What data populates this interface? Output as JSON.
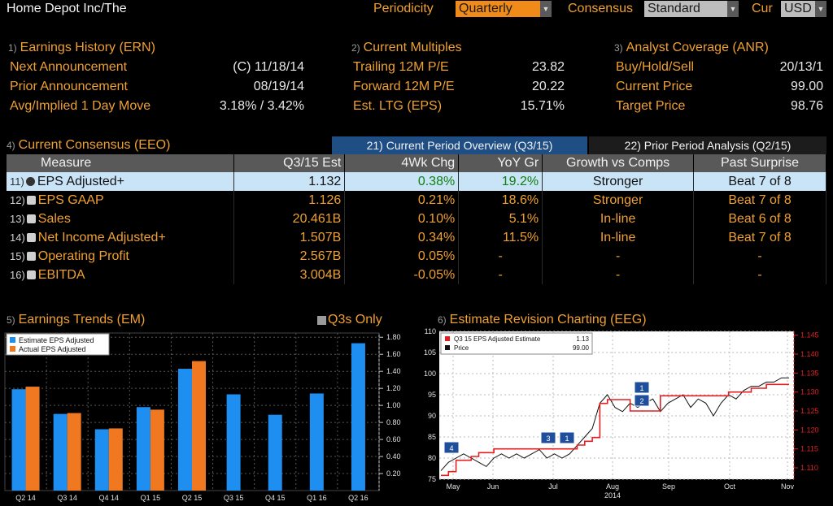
{
  "header": {
    "title": "Home Depot Inc/The",
    "periodicity_label": "Periodicity",
    "periodicity_value": "Quarterly",
    "consensus_label": "Consensus",
    "consensus_value": "Standard",
    "cur_label": "Cur",
    "cur_value": "USD"
  },
  "earnings_history": {
    "num": "1)",
    "title": "Earnings History (ERN)",
    "rows": [
      {
        "label": "Next Announcement",
        "value": "(C)  11/18/14"
      },
      {
        "label": "Prior Announcement",
        "value": "08/19/14"
      },
      {
        "label": "Avg/Implied 1 Day Move",
        "value": "3.18% / 3.42%"
      }
    ]
  },
  "current_multiples": {
    "num": "2)",
    "title": "Current Multiples",
    "rows": [
      {
        "label": "Trailing 12M P/E",
        "value": "23.82"
      },
      {
        "label": "Forward 12M P/E",
        "value": "20.22"
      },
      {
        "label": "Est. LTG (EPS)",
        "value": "15.71%"
      }
    ]
  },
  "analyst_coverage": {
    "num": "3)",
    "title": "Analyst Coverage (ANR)",
    "rows": [
      {
        "label": "Buy/Hold/Sell",
        "value": "20/13/1"
      },
      {
        "label": "Current Price",
        "value": "99.00"
      },
      {
        "label": "Target Price",
        "value": "98.76"
      }
    ]
  },
  "consensus": {
    "num": "4)",
    "title": "Current Consensus (EEO)",
    "tab_current": "21) Current Period Overview (Q3/15)",
    "tab_prior": "22) Prior Period Analysis (Q2/15)",
    "columns": [
      "Measure",
      "Q3/15 Est",
      "4Wk Chg",
      "YoY Gr",
      "Growth vs Comps",
      "Past Surprise"
    ],
    "rows": [
      {
        "idx": "11)",
        "measure": "EPS Adjusted+",
        "est": "1.132",
        "chg": "0.38%",
        "yoy": "19.2%",
        "growth": "Stronger",
        "surprise": "Beat 7 of 8"
      },
      {
        "idx": "12)",
        "measure": "EPS GAAP",
        "est": "1.126",
        "chg": "0.21%",
        "yoy": "18.6%",
        "growth": "Stronger",
        "surprise": "Beat 7 of 8"
      },
      {
        "idx": "13)",
        "measure": "Sales",
        "est": "20.461B",
        "chg": "0.10%",
        "yoy": "5.1%",
        "growth": "In-line",
        "surprise": "Beat 6 of 8"
      },
      {
        "idx": "14)",
        "measure": "Net Income Adjusted+",
        "est": "1.507B",
        "chg": "0.34%",
        "yoy": "11.5%",
        "growth": "In-line",
        "surprise": "Beat 7 of 8"
      },
      {
        "idx": "15)",
        "measure": "Operating Profit",
        "est": "2.567B",
        "chg": "0.05%",
        "yoy": "-",
        "growth": "-",
        "surprise": "-"
      },
      {
        "idx": "16)",
        "measure": "EBITDA",
        "est": "3.004B",
        "chg": "-0.05%",
        "yoy": "-",
        "growth": "-",
        "surprise": "-"
      }
    ]
  },
  "earnings_trends": {
    "num": "5)",
    "title": "Earnings Trends (EM)",
    "toggle_label": "Q3s Only"
  },
  "estimate_revision": {
    "num": "6)",
    "title": "Estimate Revision Charting (EEG)"
  },
  "colors": {
    "estimate": "#1e8ff0",
    "actual": "#f07820",
    "price": "#e0e0e0",
    "revision": "#e02020",
    "accent": "#f0a030"
  },
  "chart_data": [
    {
      "type": "bar",
      "title": "Earnings Trends (EM)",
      "categories": [
        "Q2 14",
        "Q3 14",
        "Q4 14",
        "Q1 15",
        "Q2 15",
        "Q3 15",
        "Q4 15",
        "Q1 16",
        "Q2 16"
      ],
      "series": [
        {
          "name": "Estimate EPS Adjusted",
          "values": [
            1.19,
            0.9,
            0.72,
            0.98,
            1.43,
            1.13,
            0.89,
            1.14,
            1.73
          ]
        },
        {
          "name": "Actual EPS Adjusted",
          "values": [
            1.22,
            0.91,
            0.73,
            0.95,
            1.52,
            null,
            null,
            null,
            null
          ]
        }
      ],
      "yticks": [
        "0.20",
        "0.40",
        "0.60",
        "0.80",
        "1.00",
        "1.20",
        "1.40",
        "1.60",
        "1.80"
      ],
      "ylim": [
        0,
        1.85
      ],
      "legend": "top-left"
    },
    {
      "type": "line",
      "title": "Estimate Revision Charting (EEG)",
      "x_ticks": [
        "May",
        "Jun",
        "Jul",
        "Aug",
        "Sep",
        "Oct",
        "Nov"
      ],
      "x_year": "2014",
      "left_axis_ticks": [
        "75",
        "80",
        "85",
        "90",
        "95",
        "100",
        "105",
        "110"
      ],
      "right_axis_ticks": [
        "1.110",
        "1.115",
        "1.120",
        "1.125",
        "1.130",
        "1.135",
        "1.140",
        "1.145"
      ],
      "left_ylim": [
        75,
        110
      ],
      "right_ylim": [
        1.107,
        1.146
      ],
      "series": [
        {
          "name": "Q3 15 EPS Adjusted Estimate",
          "last_value": "1.13",
          "axis": "right",
          "values": [
            1.108,
            1.109,
            1.112,
            1.112,
            1.113,
            1.114,
            1.114,
            1.115,
            1.115,
            1.115,
            1.115,
            1.115,
            1.115,
            1.115,
            1.115,
            1.115,
            1.115,
            1.115,
            1.116,
            1.117,
            1.118,
            1.127,
            1.128,
            1.128,
            1.128,
            1.125,
            1.125,
            1.125,
            1.125,
            1.129,
            1.129,
            1.129,
            1.129,
            1.129,
            1.129,
            1.129,
            1.129,
            1.129,
            1.13,
            1.13,
            1.13,
            1.131,
            1.131,
            1.132,
            1.132,
            1.132,
            1.132
          ]
        },
        {
          "name": "Price",
          "last_value": "99.00",
          "axis": "left",
          "values": [
            77,
            79,
            80,
            81,
            80,
            79,
            78,
            80,
            81,
            80,
            81,
            80,
            81,
            82,
            80,
            81,
            80,
            81,
            83,
            85,
            87,
            93,
            95,
            92,
            91,
            93,
            92,
            93,
            94,
            91,
            93,
            94,
            95,
            92,
            94,
            93,
            90,
            93,
            95,
            94,
            96,
            97,
            97,
            98,
            98,
            99,
            99
          ]
        }
      ],
      "annotations": [
        "4",
        "3",
        "1",
        "1",
        "2"
      ],
      "legend": "top-left"
    }
  ]
}
